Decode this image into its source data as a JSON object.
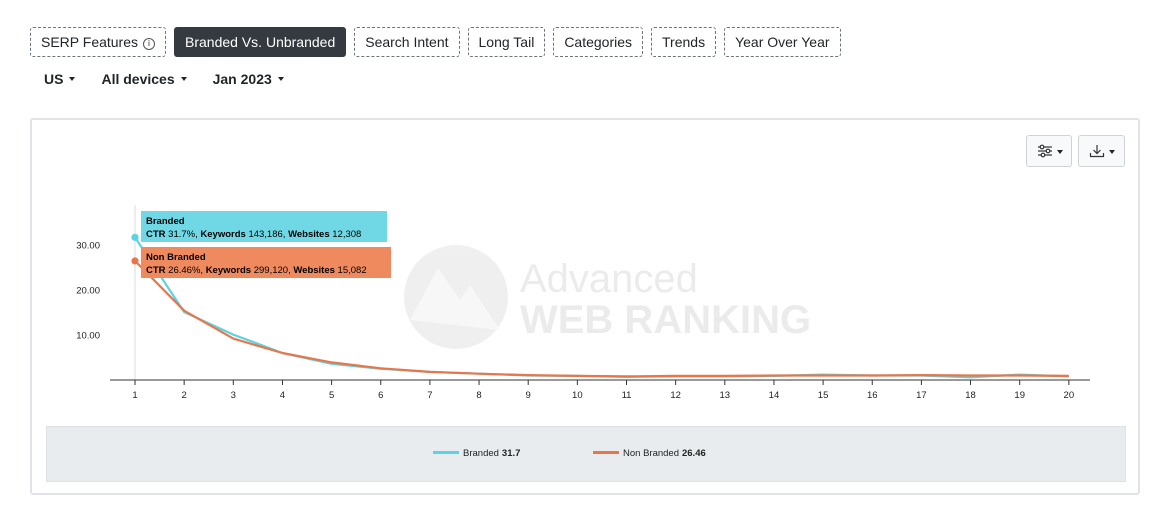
{
  "tabs": [
    {
      "label": "SERP Features",
      "info": "i",
      "active": false
    },
    {
      "label": "Branded Vs. Unbranded",
      "active": true
    },
    {
      "label": "Search Intent",
      "active": false
    },
    {
      "label": "Long Tail",
      "active": false
    },
    {
      "label": "Categories",
      "active": false
    },
    {
      "label": "Trends",
      "active": false
    },
    {
      "label": "Year Over Year",
      "active": false
    }
  ],
  "filters": {
    "country": "US",
    "devices": "All devices",
    "date": "Jan 2023"
  },
  "toolbar": {
    "settings_icon": "sliders-icon",
    "download_icon": "download-icon"
  },
  "watermark": {
    "line1": "Advanced",
    "line2": "WEB RANKING"
  },
  "colors": {
    "branded": "#5bd3e1",
    "non_branded": "#e8764a",
    "tooltip_branded": "#6fd8e4",
    "tooltip_non_branded": "#ef8a5f"
  },
  "tooltip": {
    "branded": {
      "title": "Branded",
      "ctr_label": "CTR",
      "ctr": "31.7%,",
      "kw_label": "Keywords",
      "kw": "143,186,",
      "web_label": "Websites",
      "web": "12,308"
    },
    "non_branded": {
      "title": "Non Branded",
      "ctr_label": "CTR",
      "ctr": "26.46%,",
      "kw_label": "Keywords",
      "kw": "299,120,",
      "web_label": "Websites",
      "web": "15,082"
    }
  },
  "legend": [
    {
      "name": "Branded",
      "value": "31.7"
    },
    {
      "name": "Non Branded",
      "value": "26.46"
    }
  ],
  "chart_data": {
    "type": "line",
    "x": [
      1,
      2,
      3,
      4,
      5,
      6,
      7,
      8,
      9,
      10,
      11,
      12,
      13,
      14,
      15,
      16,
      17,
      18,
      19,
      20
    ],
    "y_ticks": [
      "30.00",
      "20.00",
      "10.00"
    ],
    "ylim": [
      0,
      35
    ],
    "grid": false,
    "legend_position": "bottom",
    "series": [
      {
        "name": "Branded",
        "values": [
          31.7,
          15.1,
          10.1,
          6.0,
          3.6,
          2.5,
          1.8,
          1.4,
          1.0,
          0.9,
          0.7,
          0.8,
          0.8,
          0.9,
          1.2,
          1.0,
          1.0,
          0.6,
          1.2,
          0.8
        ]
      },
      {
        "name": "Non Branded",
        "values": [
          26.46,
          15.4,
          9.2,
          6.0,
          3.9,
          2.6,
          1.8,
          1.4,
          1.1,
          0.9,
          0.8,
          0.9,
          0.9,
          1.0,
          1.0,
          1.0,
          1.1,
          1.0,
          1.0,
          0.9
        ]
      }
    ]
  }
}
